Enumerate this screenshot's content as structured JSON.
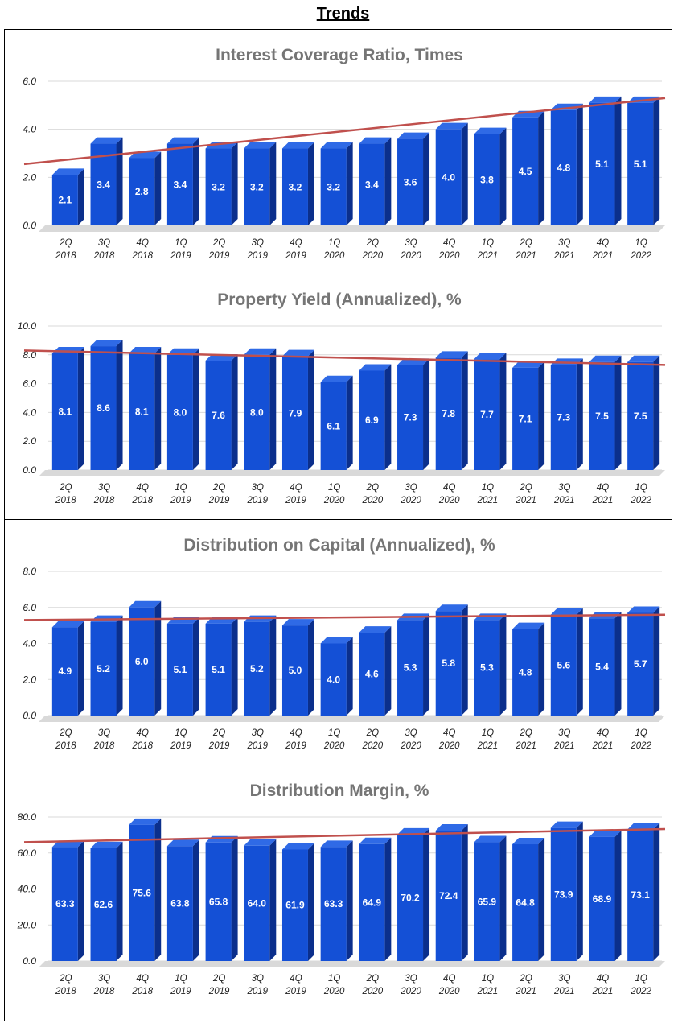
{
  "page": {
    "title": "Trends"
  },
  "colors": {
    "bar_front": "#1450d6",
    "bar_side": "#0b2f8c",
    "bar_top": "#2f6ae6",
    "trend": "#c0504d",
    "grid": "#d9d9d9",
    "title_gray": "#757575",
    "floor": "#d9d9d9"
  },
  "chart_data": [
    {
      "type": "bar",
      "title": "Interest Coverage Ratio, Times",
      "categories": [
        "2Q|2018",
        "3Q|2018",
        "4Q|2018",
        "1Q|2019",
        "2Q|2019",
        "3Q|2019",
        "4Q|2019",
        "1Q|2020",
        "2Q|2020",
        "3Q|2020",
        "4Q|2020",
        "1Q|2021",
        "2Q|2021",
        "3Q|2021",
        "4Q|2021",
        "1Q|2022"
      ],
      "values": [
        2.1,
        3.4,
        2.8,
        3.4,
        3.2,
        3.2,
        3.2,
        3.2,
        3.4,
        3.6,
        4.0,
        3.8,
        4.5,
        4.8,
        5.1,
        5.1
      ],
      "value_labels": [
        "2.1",
        "3.4",
        "2.8",
        "3.4",
        "3.2",
        "3.2",
        "3.2",
        "3.2",
        "3.4",
        "3.6",
        "4.0",
        "3.8",
        "4.5",
        "4.8",
        "5.1",
        "5.1"
      ],
      "ylim": [
        0,
        6
      ],
      "yticks": [
        0,
        2,
        4,
        6
      ],
      "ytick_labels": [
        "0.0",
        "2.0",
        "4.0",
        "6.0"
      ],
      "trendline": [
        2.55,
        5.3
      ],
      "xlabel": "",
      "ylabel": "",
      "grid": true
    },
    {
      "type": "bar",
      "title": "Property Yield (Annualized), %",
      "categories": [
        "2Q|2018",
        "3Q|2018",
        "4Q|2018",
        "1Q|2019",
        "2Q|2019",
        "3Q|2019",
        "4Q|2019",
        "1Q|2020",
        "2Q|2020",
        "3Q|2020",
        "4Q|2020",
        "1Q|2021",
        "2Q|2021",
        "3Q|2021",
        "4Q|2021",
        "1Q|2022"
      ],
      "values": [
        8.1,
        8.6,
        8.1,
        8.0,
        7.6,
        8.0,
        7.9,
        6.1,
        6.9,
        7.3,
        7.8,
        7.7,
        7.1,
        7.3,
        7.5,
        7.5
      ],
      "value_labels": [
        "8.1",
        "8.6",
        "8.1",
        "8.0",
        "7.6",
        "8.0",
        "7.9",
        "6.1",
        "6.9",
        "7.3",
        "7.8",
        "7.7",
        "7.1",
        "7.3",
        "7.5",
        "7.5"
      ],
      "ylim": [
        0,
        10
      ],
      "yticks": [
        0,
        2,
        4,
        6,
        8,
        10
      ],
      "ytick_labels": [
        "0.0",
        "2.0",
        "4.0",
        "6.0",
        "8.0",
        "10.0"
      ],
      "trendline": [
        8.3,
        7.3
      ],
      "xlabel": "",
      "ylabel": "",
      "grid": true
    },
    {
      "type": "bar",
      "title": "Distribution on Capital (Annualized), %",
      "categories": [
        "2Q|2018",
        "3Q|2018",
        "4Q|2018",
        "1Q|2019",
        "2Q|2019",
        "3Q|2019",
        "4Q|2019",
        "1Q|2020",
        "2Q|2020",
        "3Q|2020",
        "4Q|2020",
        "1Q|2021",
        "2Q|2021",
        "3Q|2021",
        "4Q|2021",
        "1Q|2022"
      ],
      "values": [
        4.9,
        5.2,
        6.0,
        5.1,
        5.1,
        5.2,
        5.0,
        4.0,
        4.6,
        5.3,
        5.8,
        5.3,
        4.8,
        5.6,
        5.4,
        5.7
      ],
      "value_labels": [
        "4.9",
        "5.2",
        "6.0",
        "5.1",
        "5.1",
        "5.2",
        "5.0",
        "4.0",
        "4.6",
        "5.3",
        "5.8",
        "5.3",
        "4.8",
        "5.6",
        "5.4",
        "5.7"
      ],
      "ylim": [
        0,
        8
      ],
      "yticks": [
        0,
        2,
        4,
        6,
        8
      ],
      "ytick_labels": [
        "0.0",
        "2.0",
        "4.0",
        "6.0",
        "8.0"
      ],
      "trendline": [
        5.3,
        5.6
      ],
      "xlabel": "",
      "ylabel": "",
      "grid": true
    },
    {
      "type": "bar",
      "title": "Distribution Margin, %",
      "categories": [
        "2Q|2018",
        "3Q|2018",
        "4Q|2018",
        "1Q|2019",
        "2Q|2019",
        "3Q|2019",
        "4Q|2019",
        "1Q|2020",
        "2Q|2020",
        "3Q|2020",
        "4Q|2020",
        "1Q|2021",
        "2Q|2021",
        "3Q|2021",
        "4Q|2021",
        "1Q|2022"
      ],
      "values": [
        63.3,
        62.6,
        75.6,
        63.8,
        65.8,
        64.0,
        61.9,
        63.3,
        64.9,
        70.2,
        72.4,
        65.9,
        64.8,
        73.9,
        68.9,
        73.1
      ],
      "value_labels": [
        "63.3",
        "62.6",
        "75.6",
        "63.8",
        "65.8",
        "64.0",
        "61.9",
        "63.3",
        "64.9",
        "70.2",
        "72.4",
        "65.9",
        "64.8",
        "73.9",
        "68.9",
        "73.1"
      ],
      "ylim": [
        0,
        80
      ],
      "yticks": [
        0,
        20,
        40,
        60,
        80
      ],
      "ytick_labels": [
        "0.0",
        "20.0",
        "40.0",
        "60.0",
        "80.0"
      ],
      "trendline": [
        66.0,
        73.3
      ],
      "xlabel": "",
      "ylabel": "",
      "grid": true
    }
  ]
}
